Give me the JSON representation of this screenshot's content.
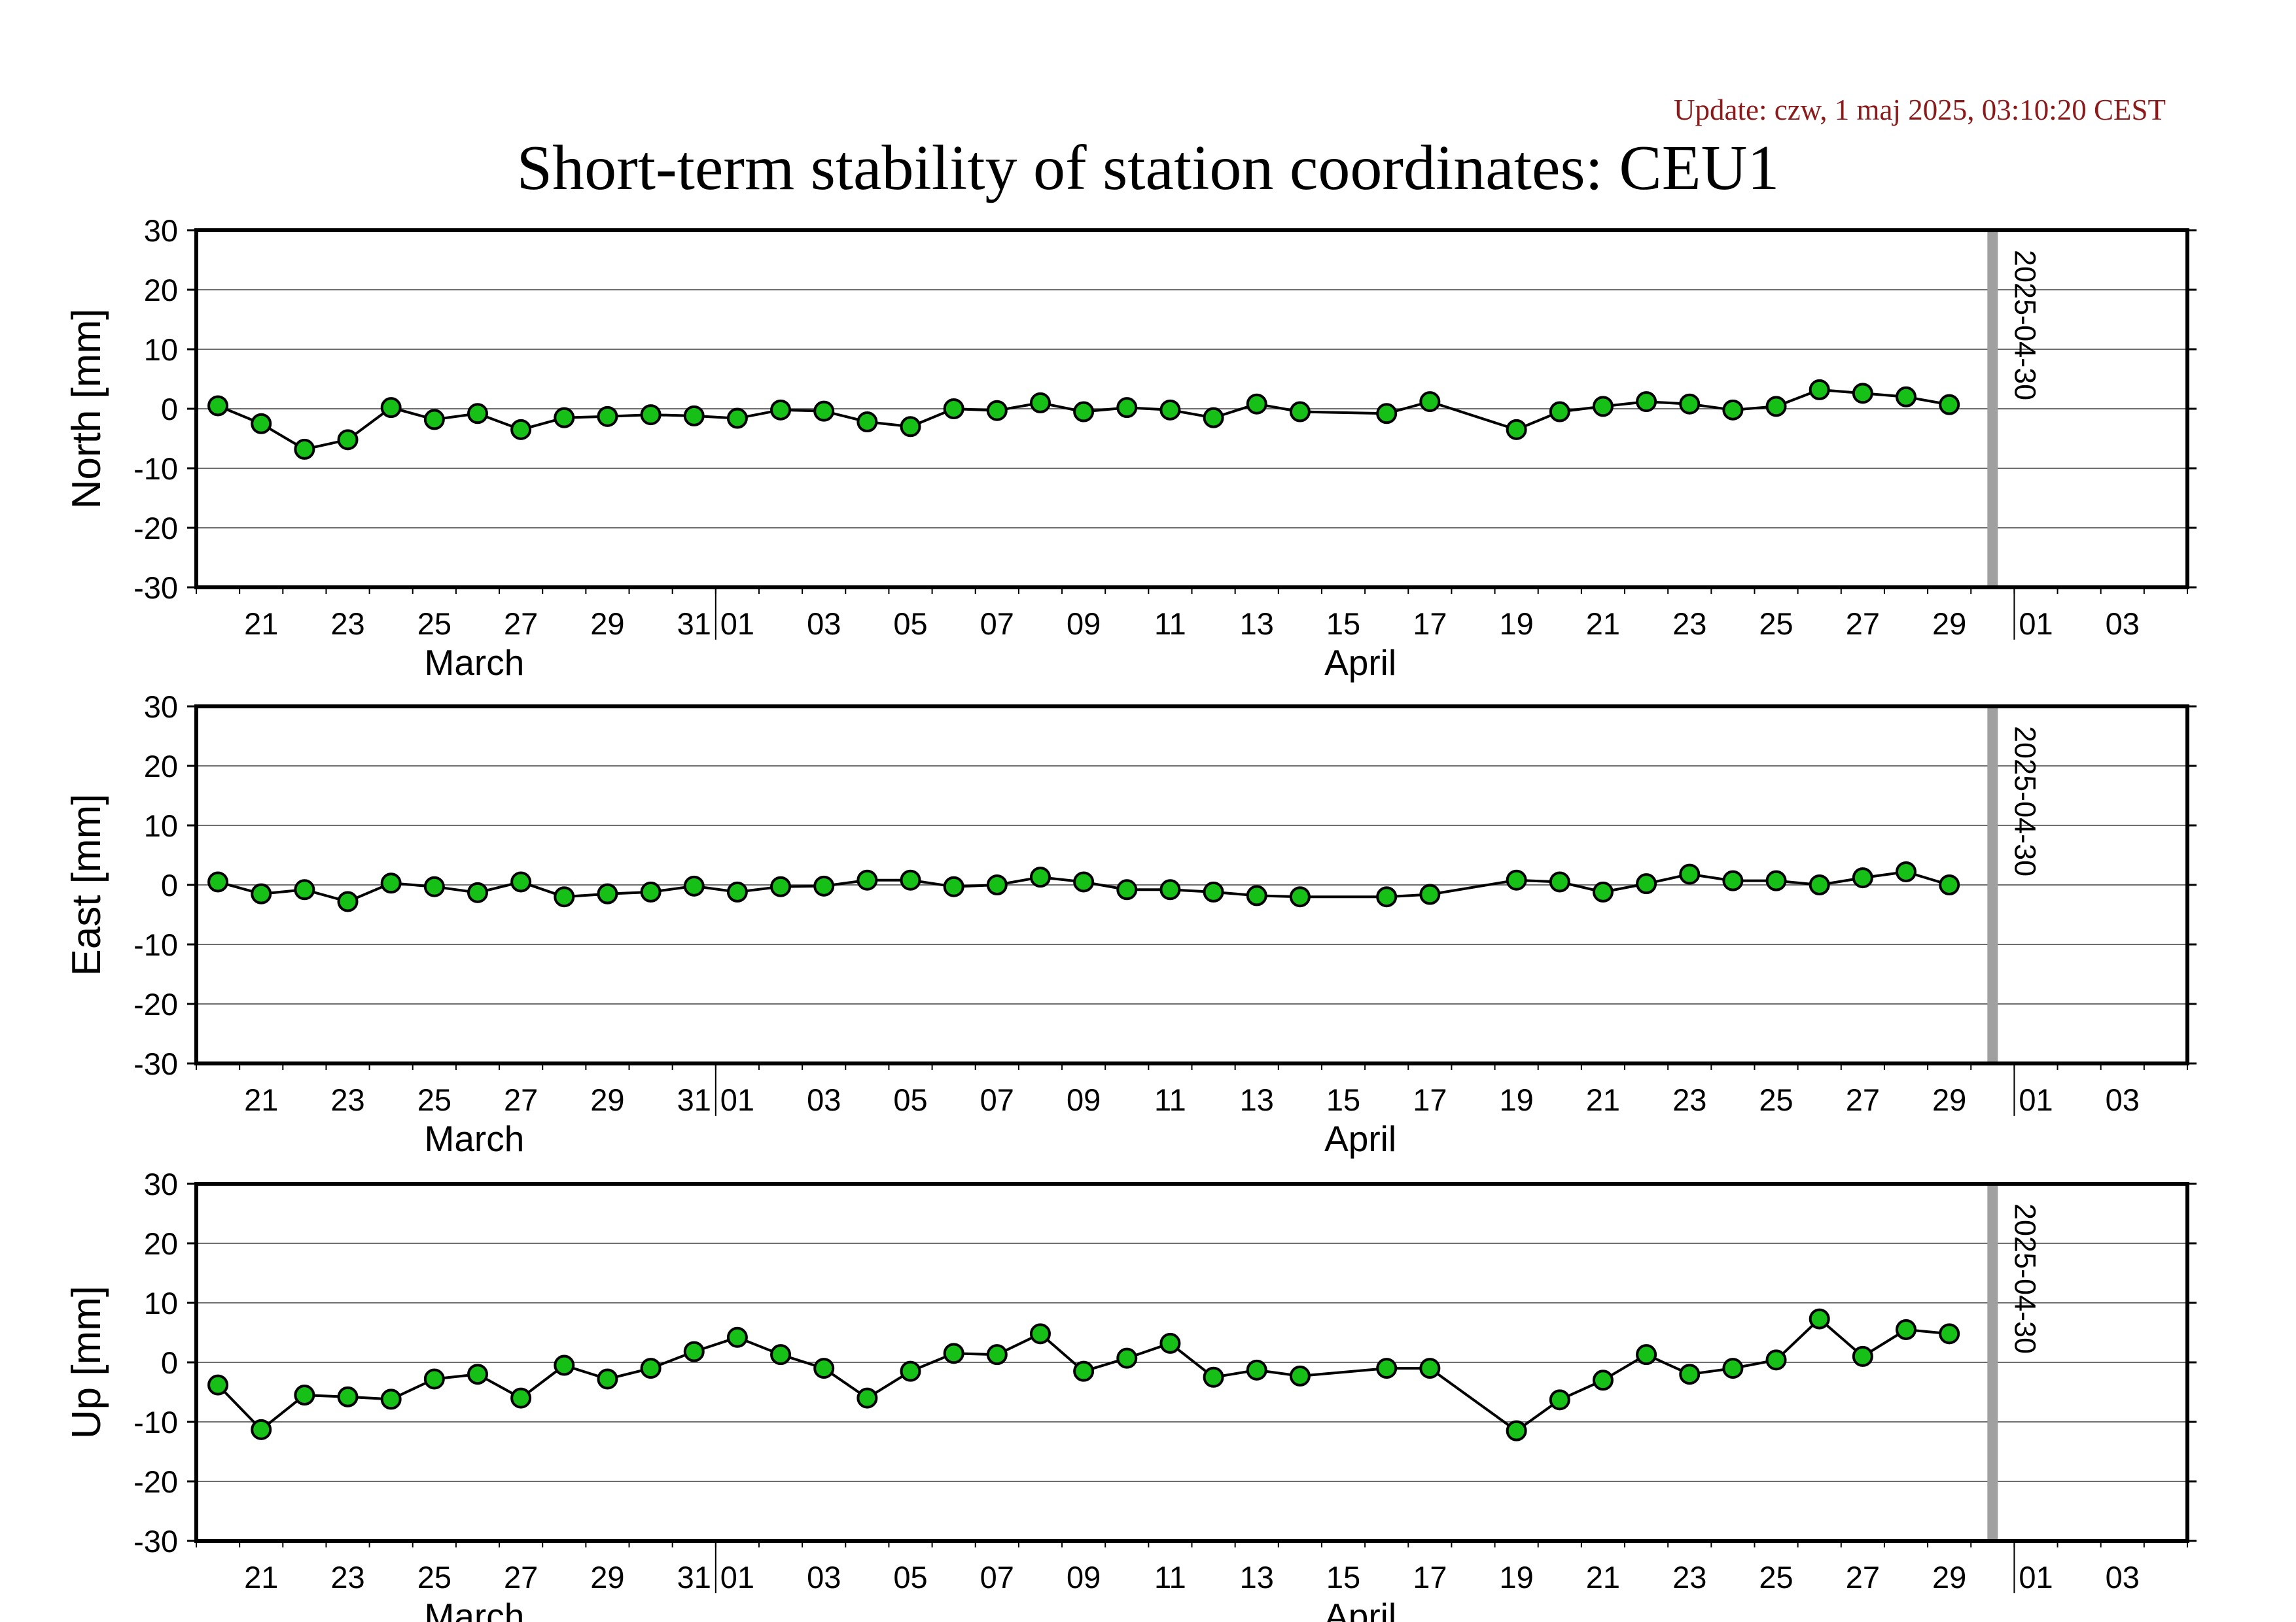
{
  "header": {
    "update": "Update: czw, 1 maj 2025, 03:10:20 CEST",
    "title": "Short-term stability of station coordinates: CEU1"
  },
  "chart_data": [
    {
      "type": "line",
      "ylabel": "North [mm]",
      "ylim": [
        -30,
        30
      ],
      "yticks": [
        30,
        20,
        10,
        0,
        -10,
        -20,
        -30
      ],
      "xlim": [
        "2025-03-20",
        "2025-05-04"
      ],
      "xtick_labels": [
        "21",
        "23",
        "25",
        "27",
        "29",
        "31",
        "01",
        "03",
        "05",
        "07",
        "09",
        "11",
        "13",
        "15",
        "17",
        "19",
        "21",
        "23",
        "25",
        "27",
        "29",
        "01",
        "03"
      ],
      "month_labels": [
        "March",
        "April"
      ],
      "grid": true,
      "marker_line": {
        "date": "2025-04-30",
        "label": "2025-04-30",
        "color": "#a0a0a0"
      },
      "series": [
        {
          "marker_color": "#16c016",
          "x": [
            "2025-03-20",
            "2025-03-21",
            "2025-03-22",
            "2025-03-23",
            "2025-03-24",
            "2025-03-25",
            "2025-03-26",
            "2025-03-27",
            "2025-03-28",
            "2025-03-29",
            "2025-03-30",
            "2025-03-31",
            "2025-04-01",
            "2025-04-02",
            "2025-04-03",
            "2025-04-04",
            "2025-04-05",
            "2025-04-06",
            "2025-04-07",
            "2025-04-08",
            "2025-04-09",
            "2025-04-10",
            "2025-04-11",
            "2025-04-12",
            "2025-04-13",
            "2025-04-14",
            "2025-04-16",
            "2025-04-17",
            "2025-04-19",
            "2025-04-20",
            "2025-04-21",
            "2025-04-22",
            "2025-04-23",
            "2025-04-24",
            "2025-04-25",
            "2025-04-26",
            "2025-04-27",
            "2025-04-28",
            "2025-04-29"
          ],
          "y": [
            0.5,
            -2.5,
            -6.8,
            -5.2,
            0.2,
            -1.8,
            -0.8,
            -3.5,
            -1.5,
            -1.3,
            -1.0,
            -1.2,
            -1.6,
            -0.2,
            -0.4,
            -2.2,
            -3.0,
            0.0,
            -0.3,
            1.0,
            -0.5,
            0.2,
            -0.2,
            -1.5,
            0.8,
            -0.5,
            -0.8,
            1.2,
            -3.5,
            -0.5,
            0.4,
            1.2,
            0.8,
            -0.2,
            0.4,
            3.2,
            2.6,
            2.0,
            0.7
          ]
        }
      ]
    },
    {
      "type": "line",
      "ylabel": "East [mm]",
      "ylim": [
        -30,
        30
      ],
      "yticks": [
        30,
        20,
        10,
        0,
        -10,
        -20,
        -30
      ],
      "xlim": [
        "2025-03-20",
        "2025-05-04"
      ],
      "xtick_labels": [
        "21",
        "23",
        "25",
        "27",
        "29",
        "31",
        "01",
        "03",
        "05",
        "07",
        "09",
        "11",
        "13",
        "15",
        "17",
        "19",
        "21",
        "23",
        "25",
        "27",
        "29",
        "01",
        "03"
      ],
      "month_labels": [
        "March",
        "April"
      ],
      "grid": true,
      "marker_line": {
        "date": "2025-04-30",
        "label": "2025-04-30",
        "color": "#a0a0a0"
      },
      "series": [
        {
          "marker_color": "#16c016",
          "x": [
            "2025-03-20",
            "2025-03-21",
            "2025-03-22",
            "2025-03-23",
            "2025-03-24",
            "2025-03-25",
            "2025-03-26",
            "2025-03-27",
            "2025-03-28",
            "2025-03-29",
            "2025-03-30",
            "2025-03-31",
            "2025-04-01",
            "2025-04-02",
            "2025-04-03",
            "2025-04-04",
            "2025-04-05",
            "2025-04-06",
            "2025-04-07",
            "2025-04-08",
            "2025-04-09",
            "2025-04-10",
            "2025-04-11",
            "2025-04-12",
            "2025-04-13",
            "2025-04-14",
            "2025-04-16",
            "2025-04-17",
            "2025-04-19",
            "2025-04-20",
            "2025-04-21",
            "2025-04-22",
            "2025-04-23",
            "2025-04-24",
            "2025-04-25",
            "2025-04-26",
            "2025-04-27",
            "2025-04-28",
            "2025-04-29"
          ],
          "y": [
            0.5,
            -1.5,
            -0.8,
            -2.8,
            0.3,
            -0.3,
            -1.3,
            0.5,
            -2.0,
            -1.5,
            -1.2,
            -0.2,
            -1.2,
            -0.3,
            -0.2,
            0.8,
            0.8,
            -0.3,
            0.0,
            1.3,
            0.5,
            -0.8,
            -0.8,
            -1.2,
            -1.8,
            -2.0,
            -2.0,
            -1.6,
            0.8,
            0.5,
            -1.2,
            0.2,
            1.8,
            0.7,
            0.7,
            0.0,
            1.2,
            2.2,
            0.0
          ]
        }
      ]
    },
    {
      "type": "line",
      "ylabel": "Up [mm]",
      "ylim": [
        -30,
        30
      ],
      "yticks": [
        30,
        20,
        10,
        0,
        -10,
        -20,
        -30
      ],
      "xlim": [
        "2025-03-20",
        "2025-05-04"
      ],
      "xtick_labels": [
        "21",
        "23",
        "25",
        "27",
        "29",
        "31",
        "01",
        "03",
        "05",
        "07",
        "09",
        "11",
        "13",
        "15",
        "17",
        "19",
        "21",
        "23",
        "25",
        "27",
        "29",
        "01",
        "03"
      ],
      "month_labels": [
        "March",
        "April"
      ],
      "grid": true,
      "marker_line": {
        "date": "2025-04-30",
        "label": "2025-04-30",
        "color": "#a0a0a0"
      },
      "series": [
        {
          "marker_color": "#16c016",
          "x": [
            "2025-03-20",
            "2025-03-21",
            "2025-03-22",
            "2025-03-23",
            "2025-03-24",
            "2025-03-25",
            "2025-03-26",
            "2025-03-27",
            "2025-03-28",
            "2025-03-29",
            "2025-03-30",
            "2025-03-31",
            "2025-04-01",
            "2025-04-02",
            "2025-04-03",
            "2025-04-04",
            "2025-04-05",
            "2025-04-06",
            "2025-04-07",
            "2025-04-08",
            "2025-04-09",
            "2025-04-10",
            "2025-04-11",
            "2025-04-12",
            "2025-04-13",
            "2025-04-14",
            "2025-04-16",
            "2025-04-17",
            "2025-04-19",
            "2025-04-20",
            "2025-04-21",
            "2025-04-22",
            "2025-04-23",
            "2025-04-24",
            "2025-04-25",
            "2025-04-26",
            "2025-04-27",
            "2025-04-28",
            "2025-04-29"
          ],
          "y": [
            -3.8,
            -11.3,
            -5.5,
            -5.8,
            -6.2,
            -2.8,
            -2.0,
            -6.0,
            -0.5,
            -2.8,
            -1.0,
            1.8,
            4.2,
            1.3,
            -1.0,
            -6.0,
            -1.5,
            1.5,
            1.3,
            4.8,
            -1.5,
            0.7,
            3.2,
            -2.5,
            -1.3,
            -2.3,
            -1.0,
            -1.0,
            -11.5,
            -6.3,
            -3.0,
            1.3,
            -2.0,
            -1.0,
            0.4,
            7.3,
            1.0,
            5.5,
            4.8
          ]
        }
      ]
    }
  ]
}
